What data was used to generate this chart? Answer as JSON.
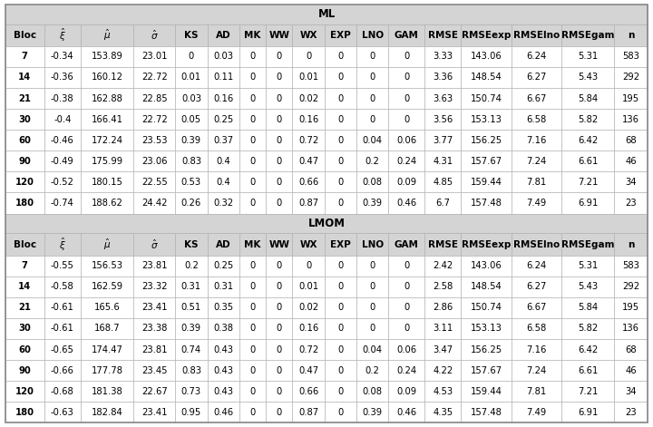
{
  "columns": [
    "Bloc",
    "$\\hat{\\xi}$",
    "$\\hat{\\mu}$",
    "$\\hat{\\sigma}$",
    "KS",
    "AD",
    "MK",
    "WW",
    "WX",
    "EXP",
    "LNO",
    "GAM",
    "RMSE",
    "RMSEexp",
    "RMSElno",
    "RMSEgam",
    "n"
  ],
  "ml_label": "ML",
  "lmom_label": "LMOM",
  "ml_data": [
    [
      "7",
      "-0.34",
      "153.89",
      "23.01",
      "0",
      "0.03",
      "0",
      "0",
      "0",
      "0",
      "0",
      "0",
      "3.33",
      "143.06",
      "6.24",
      "5.31",
      "583"
    ],
    [
      "14",
      "-0.36",
      "160.12",
      "22.72",
      "0.01",
      "0.11",
      "0",
      "0",
      "0.01",
      "0",
      "0",
      "0",
      "3.36",
      "148.54",
      "6.27",
      "5.43",
      "292"
    ],
    [
      "21",
      "-0.38",
      "162.88",
      "22.85",
      "0.03",
      "0.16",
      "0",
      "0",
      "0.02",
      "0",
      "0",
      "0",
      "3.63",
      "150.74",
      "6.67",
      "5.84",
      "195"
    ],
    [
      "30",
      "-0.4",
      "166.41",
      "22.72",
      "0.05",
      "0.25",
      "0",
      "0",
      "0.16",
      "0",
      "0",
      "0",
      "3.56",
      "153.13",
      "6.58",
      "5.82",
      "136"
    ],
    [
      "60",
      "-0.46",
      "172.24",
      "23.53",
      "0.39",
      "0.37",
      "0",
      "0",
      "0.72",
      "0",
      "0.04",
      "0.06",
      "3.77",
      "156.25",
      "7.16",
      "6.42",
      "68"
    ],
    [
      "90",
      "-0.49",
      "175.99",
      "23.06",
      "0.83",
      "0.4",
      "0",
      "0",
      "0.47",
      "0",
      "0.2",
      "0.24",
      "4.31",
      "157.67",
      "7.24",
      "6.61",
      "46"
    ],
    [
      "120",
      "-0.52",
      "180.15",
      "22.55",
      "0.53",
      "0.4",
      "0",
      "0",
      "0.66",
      "0",
      "0.08",
      "0.09",
      "4.85",
      "159.44",
      "7.81",
      "7.21",
      "34"
    ],
    [
      "180",
      "-0.74",
      "188.62",
      "24.42",
      "0.26",
      "0.32",
      "0",
      "0",
      "0.87",
      "0",
      "0.39",
      "0.46",
      "6.7",
      "157.48",
      "7.49",
      "6.91",
      "23"
    ]
  ],
  "lmom_data": [
    [
      "7",
      "-0.55",
      "156.53",
      "23.81",
      "0.2",
      "0.25",
      "0",
      "0",
      "0",
      "0",
      "0",
      "0",
      "2.42",
      "143.06",
      "6.24",
      "5.31",
      "583"
    ],
    [
      "14",
      "-0.58",
      "162.59",
      "23.32",
      "0.31",
      "0.31",
      "0",
      "0",
      "0.01",
      "0",
      "0",
      "0",
      "2.58",
      "148.54",
      "6.27",
      "5.43",
      "292"
    ],
    [
      "21",
      "-0.61",
      "165.6",
      "23.41",
      "0.51",
      "0.35",
      "0",
      "0",
      "0.02",
      "0",
      "0",
      "0",
      "2.86",
      "150.74",
      "6.67",
      "5.84",
      "195"
    ],
    [
      "30",
      "-0.61",
      "168.7",
      "23.38",
      "0.39",
      "0.38",
      "0",
      "0",
      "0.16",
      "0",
      "0",
      "0",
      "3.11",
      "153.13",
      "6.58",
      "5.82",
      "136"
    ],
    [
      "60",
      "-0.65",
      "174.47",
      "23.81",
      "0.74",
      "0.43",
      "0",
      "0",
      "0.72",
      "0",
      "0.04",
      "0.06",
      "3.47",
      "156.25",
      "7.16",
      "6.42",
      "68"
    ],
    [
      "90",
      "-0.66",
      "177.78",
      "23.45",
      "0.83",
      "0.43",
      "0",
      "0",
      "0.47",
      "0",
      "0.2",
      "0.24",
      "4.22",
      "157.67",
      "7.24",
      "6.61",
      "46"
    ],
    [
      "120",
      "-0.68",
      "181.38",
      "22.67",
      "0.73",
      "0.43",
      "0",
      "0",
      "0.66",
      "0",
      "0.08",
      "0.09",
      "4.53",
      "159.44",
      "7.81",
      "7.21",
      "34"
    ],
    [
      "180",
      "-0.63",
      "182.84",
      "23.41",
      "0.95",
      "0.46",
      "0",
      "0",
      "0.87",
      "0",
      "0.39",
      "0.46",
      "4.35",
      "157.48",
      "7.49",
      "6.91",
      "23"
    ]
  ],
  "bg_gray": "#d4d4d4",
  "bg_white": "#ffffff",
  "border_color": "#888888",
  "cell_border": "#aaaaaa",
  "font_size": 7.2,
  "header_font_size": 7.5,
  "section_font_size": 8.5,
  "col_widths_rel": [
    2.8,
    2.6,
    3.8,
    3.0,
    2.3,
    2.3,
    1.9,
    1.9,
    2.3,
    2.3,
    2.3,
    2.6,
    2.6,
    3.6,
    3.6,
    3.8,
    2.4
  ]
}
